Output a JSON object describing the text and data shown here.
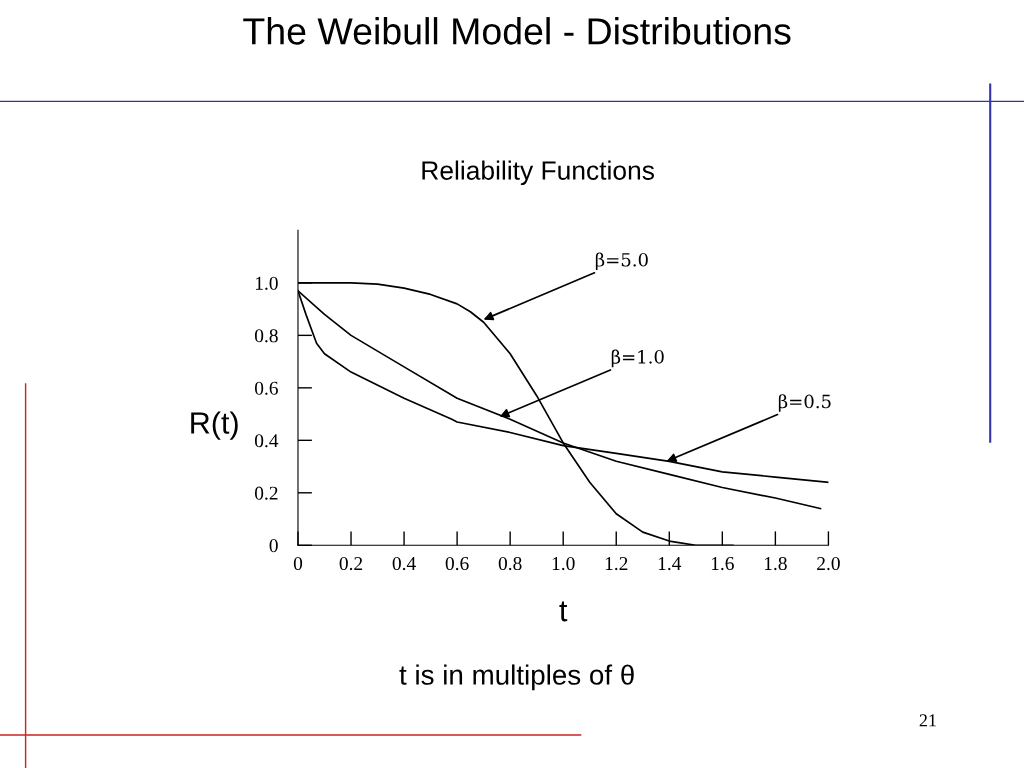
{
  "chart_data": {
    "type": "line",
    "title": "The Weibull Model - Distributions",
    "subtitle": "Reliability Functions",
    "xlabel": "t",
    "ylabel": "R(t)",
    "xlim": [
      0,
      2.0
    ],
    "ylim": [
      0,
      1.2
    ],
    "xticks": [
      0,
      {
        "value": 0.2,
        "label": "0.2"
      },
      {
        "value": 0.4,
        "label": "0.4"
      },
      {
        "value": 0.6,
        "label": "0.6"
      },
      {
        "value": 0.8,
        "label": "0.8"
      },
      {
        "value": 1.0,
        "label": "1.0"
      },
      {
        "value": 1.2,
        "label": "1.2"
      },
      {
        "value": 1.4,
        "label": "1.4"
      },
      {
        "value": 1.6,
        "label": "1.6"
      },
      {
        "value": 1.8,
        "label": "1.8"
      },
      {
        "value": 2.0,
        "label": "2.0"
      }
    ],
    "yticks": [
      0,
      {
        "value": 0.2,
        "label": "0.2"
      },
      {
        "value": 0.4,
        "label": "0.4"
      },
      {
        "value": 0.6,
        "label": "0.6"
      },
      {
        "value": 0.8,
        "label": "0.8"
      },
      {
        "value": 1.0,
        "label": "1.0"
      }
    ],
    "grid": false,
    "legend": false,
    "marker": "none",
    "line_style": "solid",
    "series": [
      {
        "color": "#000000",
        "x": [
          0,
          0.2,
          0.3,
          0.4,
          0.5,
          0.6,
          0.65,
          0.7,
          0.8,
          0.9,
          1.0,
          1.1,
          1.2,
          1.3,
          1.4,
          1.5,
          1.64
        ],
        "values": [
          1.0,
          1.0,
          0.995,
          0.98,
          0.956,
          0.92,
          0.89,
          0.85,
          0.73,
          0.57,
          0.39,
          0.24,
          0.12,
          0.05,
          0.016,
          0,
          0
        ]
      },
      {
        "color": "#000000",
        "x": [
          0,
          0.1,
          0.2,
          0.4,
          0.6,
          0.8,
          1.0,
          1.2,
          1.4,
          1.6,
          1.8,
          1.97
        ],
        "values": [
          0.97,
          0.88,
          0.8,
          0.68,
          0.56,
          0.48,
          0.39,
          0.32,
          0.27,
          0.22,
          0.18,
          0.14
        ]
      },
      {
        "color": "#000000",
        "x": [
          0,
          0.03,
          0.07,
          0.1,
          0.2,
          0.4,
          0.58,
          0.6,
          0.8,
          1.0,
          1.2,
          1.4,
          1.6,
          1.8,
          2.0
        ],
        "values": [
          0.97,
          0.88,
          0.77,
          0.73,
          0.66,
          0.56,
          0.48,
          0.47,
          0.43,
          0.38,
          0.35,
          0.32,
          0.28,
          0.26,
          0.24
        ]
      }
    ],
    "annotations": [
      {
        "text": "β=5.0",
        "x": 0.7,
        "y": 0.86
      },
      {
        "text": "β=1.0",
        "x": 0.76,
        "y": 0.49
      },
      {
        "text": "β=0.5",
        "x": 1.39,
        "y": 0.32
      },
      "t is in multiples of θ",
      "21"
    ]
  }
}
